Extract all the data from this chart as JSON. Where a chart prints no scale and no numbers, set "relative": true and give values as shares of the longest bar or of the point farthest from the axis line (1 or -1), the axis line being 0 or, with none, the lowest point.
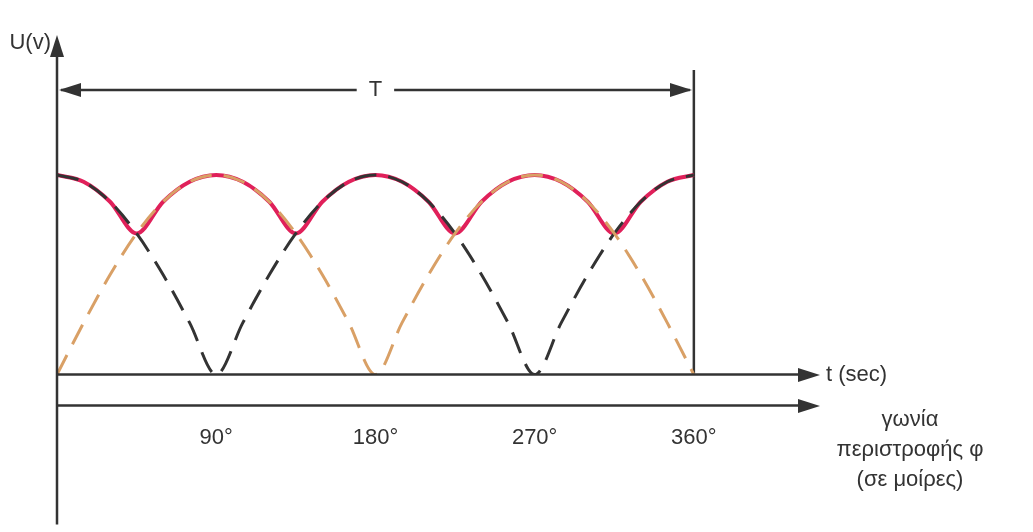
{
  "chart_data": {
    "type": "line",
    "relative": true,
    "xlabel": "γωνία περιστροφής φ (σε μοίρες)",
    "x": [
      0,
      15,
      30,
      45,
      60,
      75,
      90,
      105,
      120,
      135,
      150,
      165,
      180,
      195,
      210,
      225,
      240,
      255,
      270,
      285,
      300,
      315,
      330,
      345,
      360
    ],
    "xlim": [
      0,
      420
    ],
    "xticks": [
      {
        "value": 90,
        "label": "90°"
      },
      {
        "value": 180,
        "label": "180°"
      },
      {
        "value": 270,
        "label": "270°"
      },
      {
        "value": 360,
        "label": "360°"
      }
    ],
    "series": [
      {
        "color": "#d9a066",
        "line_style": "dashed",
        "values": [
          0,
          0.259,
          0.5,
          0.707,
          0.866,
          0.966,
          1,
          0.966,
          0.866,
          0.707,
          0.5,
          0.259,
          0,
          0.259,
          0.5,
          0.707,
          0.866,
          0.966,
          1,
          0.966,
          0.866,
          0.707,
          0.5,
          0.259,
          0
        ]
      },
      {
        "color": "#333333",
        "line_style": "dashed",
        "values": [
          1,
          0.966,
          0.866,
          0.707,
          0.5,
          0.259,
          0,
          0.259,
          0.5,
          0.707,
          0.866,
          0.966,
          1,
          0.966,
          0.866,
          0.707,
          0.5,
          0.259,
          0,
          0.259,
          0.5,
          0.707,
          0.866,
          0.966,
          1
        ]
      },
      {
        "color": "#e0205a",
        "line_style": "solid",
        "values": [
          1,
          0.966,
          0.866,
          0.707,
          0.866,
          0.966,
          1,
          0.966,
          0.866,
          0.707,
          0.866,
          0.966,
          1,
          0.966,
          0.866,
          0.707,
          0.866,
          0.966,
          1,
          0.966,
          0.866,
          0.707,
          0.866,
          0.966,
          1
        ]
      }
    ],
    "ref_lines": [
      {
        "axis": "x",
        "value": 360,
        "label": null,
        "color": "#333333"
      }
    ],
    "annotations": [
      "U(v)",
      "T",
      "t (sec)"
    ],
    "grid": false,
    "legend": false,
    "marker": "none"
  }
}
